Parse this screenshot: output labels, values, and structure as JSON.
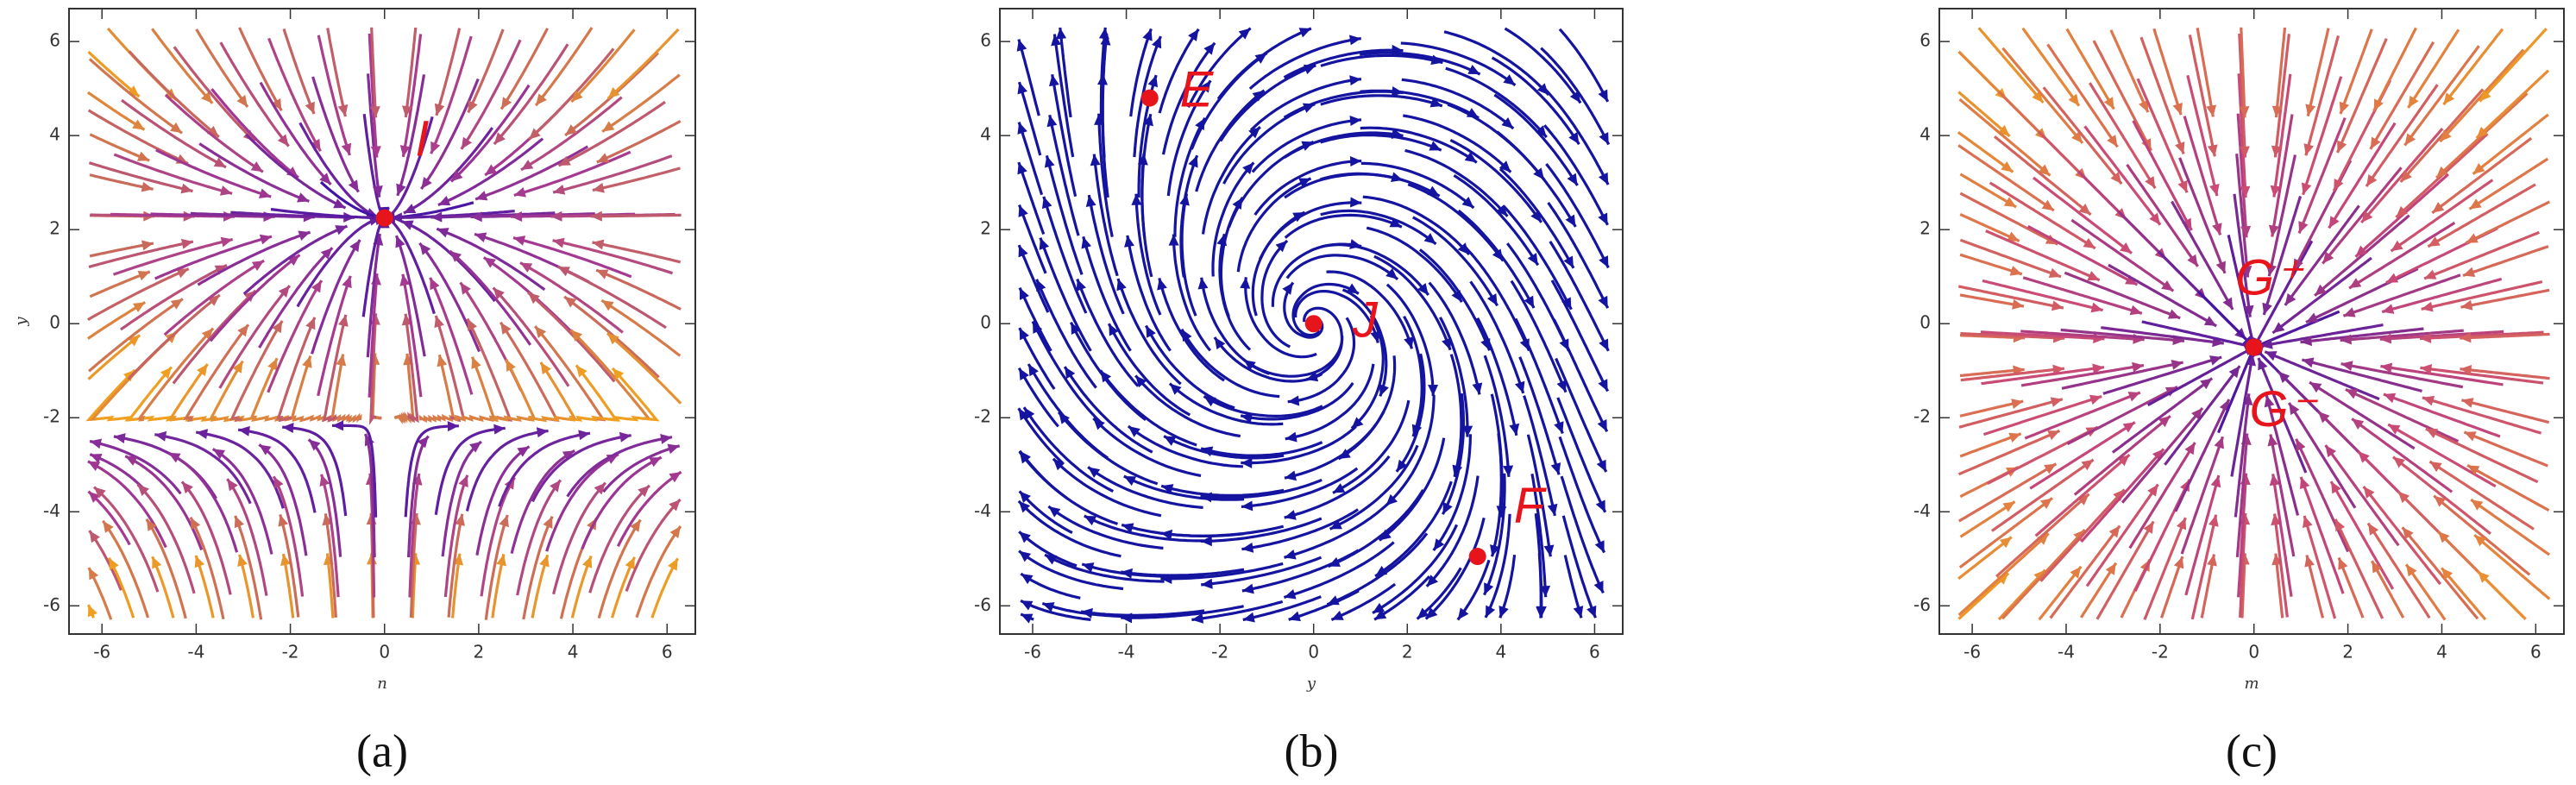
{
  "chart_data": [
    {
      "type": "stream",
      "caption": "(a)",
      "x_label": "n",
      "y_label": "y",
      "xlim": [
        -6.7,
        6.6
      ],
      "ylim": [
        -6.6,
        6.7
      ],
      "xticks": [
        -6,
        -4,
        -2,
        0,
        2,
        4,
        6
      ],
      "yticks": [
        -6,
        -4,
        -2,
        0,
        2,
        4,
        6
      ],
      "color_scale": [
        "#3b10a8",
        "#a83a90",
        "#f0a020"
      ],
      "point_color": "#e8141b",
      "points": [
        {
          "label": "I",
          "x": 0,
          "y": 2.25
        }
      ]
    },
    {
      "type": "stream",
      "caption": "(b)",
      "x_label": "y",
      "xlim": [
        -6.7,
        6.6
      ],
      "ylim": [
        -6.6,
        6.7
      ],
      "xticks": [
        -6,
        -4,
        -2,
        0,
        2,
        4,
        6
      ],
      "yticks": [
        -6,
        -4,
        -2,
        0,
        2,
        4,
        6
      ],
      "color": "#1414a0",
      "point_color": "#e8141b",
      "points": [
        {
          "label": "E",
          "x": -3.5,
          "y": 4.8
        },
        {
          "label": "J",
          "x": 0,
          "y": 0
        },
        {
          "label": "F",
          "x": 3.5,
          "y": -4.95
        }
      ]
    },
    {
      "type": "stream",
      "caption": "(c)",
      "x_label": "m",
      "xlim": [
        -6.7,
        6.6
      ],
      "ylim": [
        -6.6,
        6.7
      ],
      "xticks": [
        -6,
        -4,
        -2,
        0,
        2,
        4,
        6
      ],
      "yticks": [
        -6,
        -4,
        -2,
        0,
        2,
        4,
        6
      ],
      "color_scale": [
        "#3b10a8",
        "#c84878",
        "#f0a020"
      ],
      "point_color": "#e8141b",
      "points": [
        {
          "label": "G⁺",
          "x": 0,
          "y": -0.5
        },
        {
          "label": "G⁻",
          "x": 0,
          "y": -0.5
        }
      ]
    }
  ]
}
